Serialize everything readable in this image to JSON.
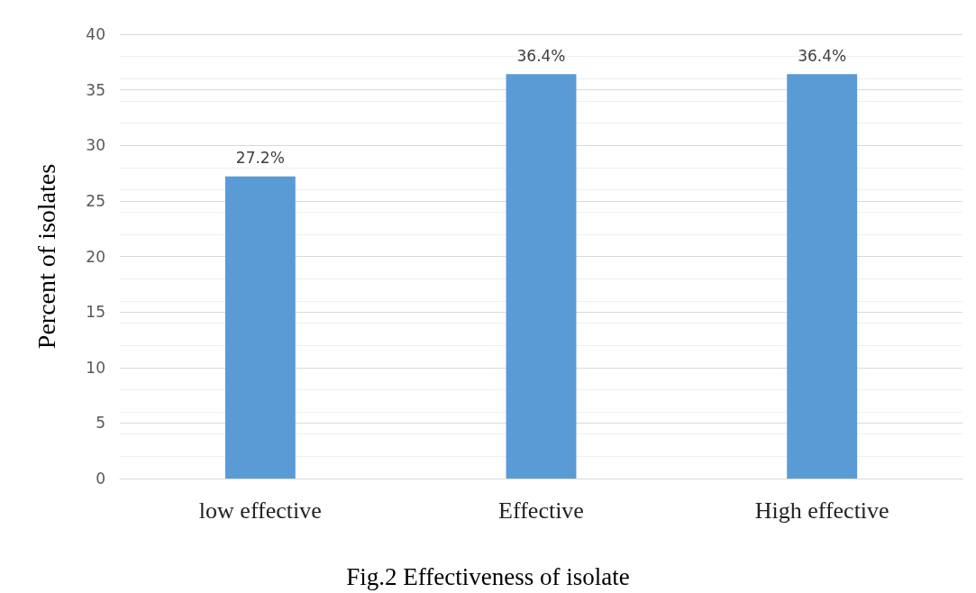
{
  "chart_data": {
    "type": "bar",
    "title": "Fig.2 Effectiveness of isolate",
    "ylabel": "Percent of isolates",
    "categories": [
      "low effective",
      "Effective",
      "High effective"
    ],
    "values": [
      27.2,
      36.4,
      36.4
    ],
    "value_labels": [
      "27.2%",
      "36.4%",
      "36.4%"
    ],
    "color": "#5b9bd5",
    "ylim": [
      0,
      40
    ],
    "yticks": [
      0,
      5,
      10,
      15,
      20,
      25,
      30,
      35,
      40
    ],
    "grid": "y"
  }
}
